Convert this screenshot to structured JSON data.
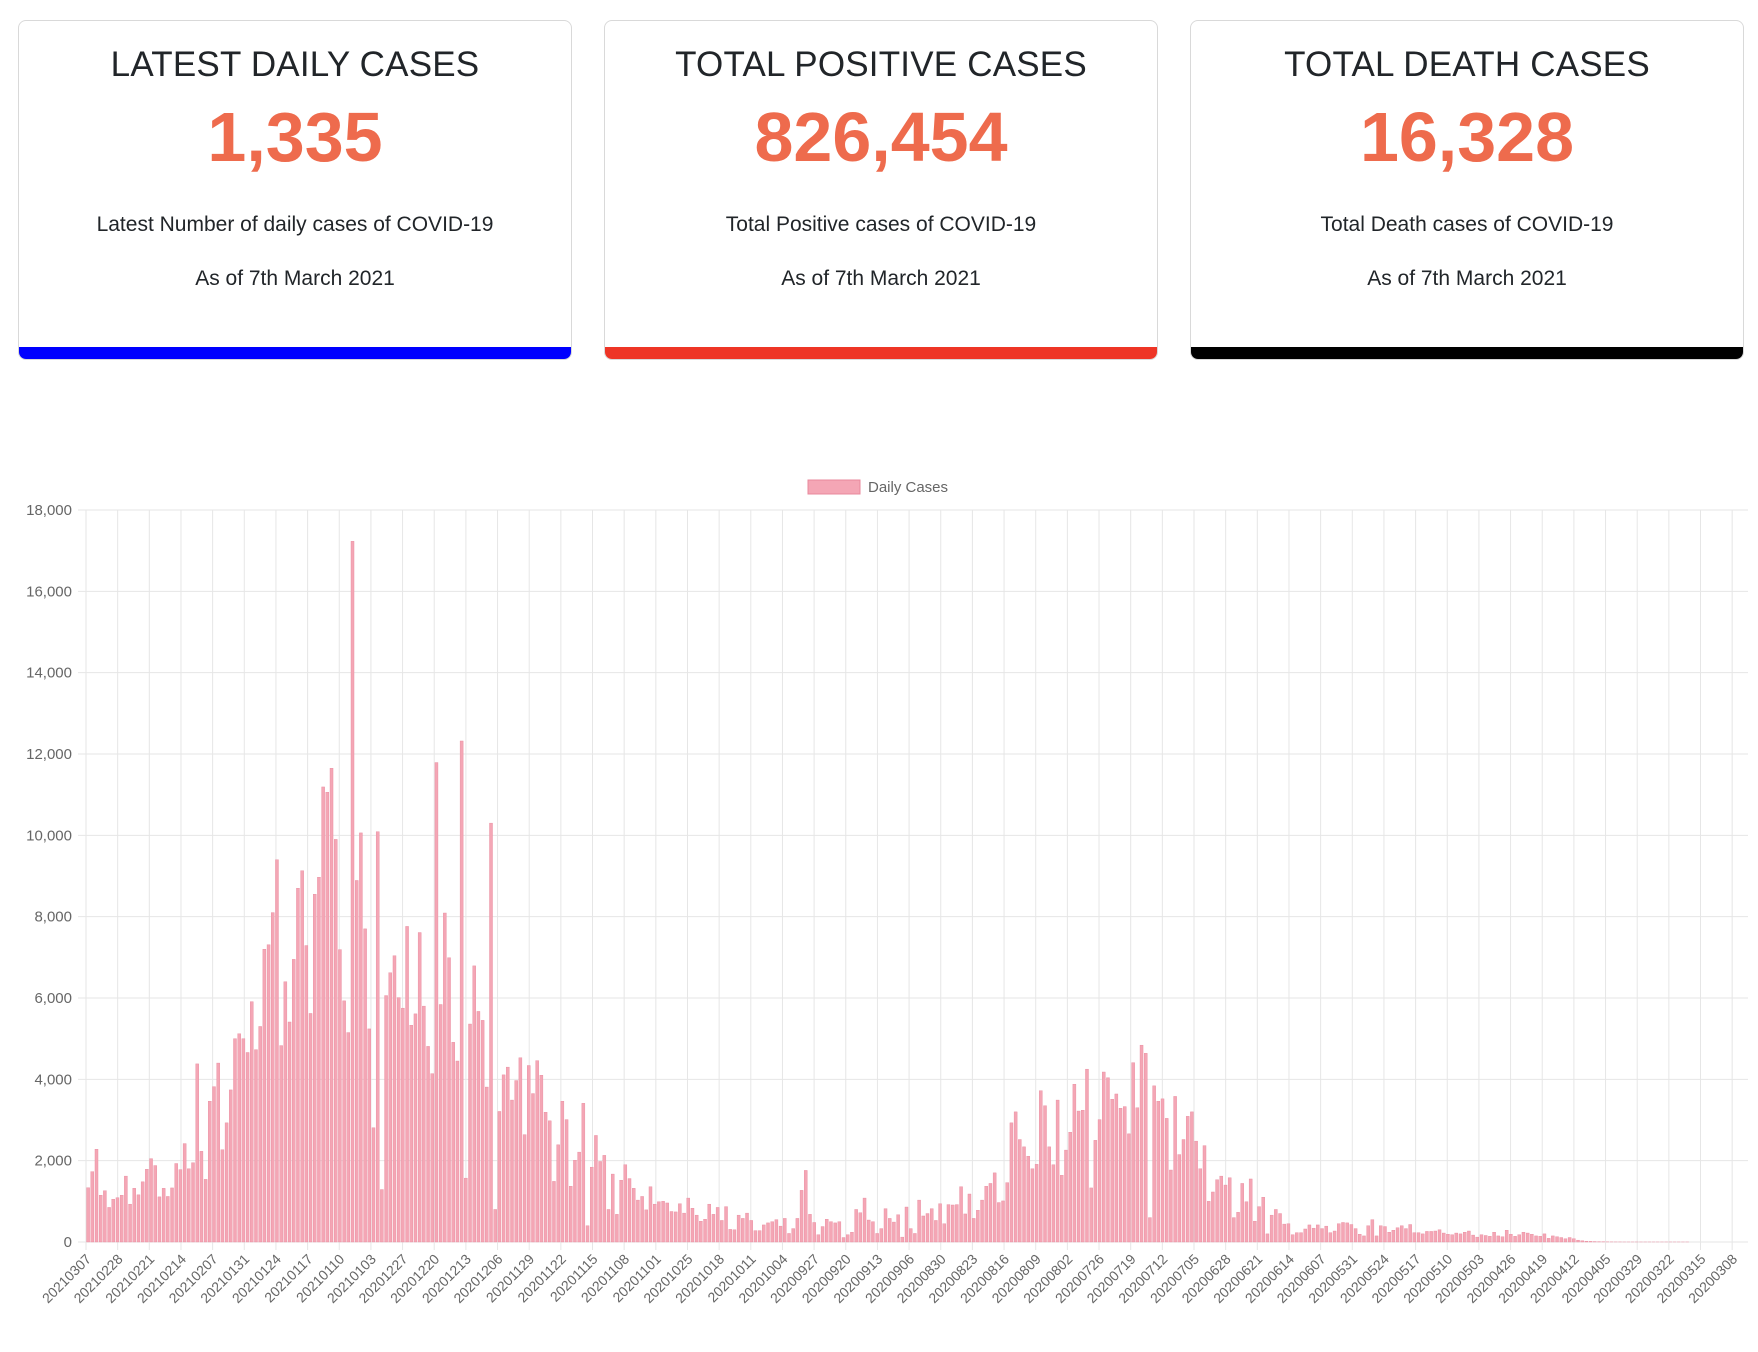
{
  "cards": [
    {
      "title": "LATEST DAILY CASES",
      "value": "1,335",
      "description": "Latest Number of daily cases of COVID-19",
      "as_of": "As of 7th March 2021",
      "accent": "#0000ff"
    },
    {
      "title": "TOTAL POSITIVE CASES",
      "value": "826,454",
      "description": "Total Positive cases of COVID-19",
      "as_of": "As of 7th March 2021",
      "accent": "#ee3526"
    },
    {
      "title": "TOTAL DEATH CASES",
      "value": "16,328",
      "description": "Total Death cases of COVID-19",
      "as_of": "As of 7th March 2021",
      "accent": "#000000"
    }
  ],
  "colors": {
    "value": "#ee6b4d",
    "bar_fill": "#f4a6b5",
    "bar_stroke": "#e8889c",
    "grid": "#e6e6e6",
    "axis_text": "#666666"
  },
  "chart_data": {
    "type": "bar",
    "legend": "Daily Cases",
    "legend_position": "top-center",
    "ylim": [
      0,
      18000
    ],
    "yticks": [
      0,
      2000,
      4000,
      6000,
      8000,
      10000,
      12000,
      14000,
      16000,
      18000
    ],
    "ytick_labels": [
      "0",
      "2,000",
      "4,000",
      "6,000",
      "8,000",
      "10,000",
      "12,000",
      "14,000",
      "16,000",
      "18,000"
    ],
    "xtick_labels": [
      "20210307",
      "20210228",
      "20210221",
      "20210214",
      "20210207",
      "20210131",
      "20210124",
      "20210117",
      "20210110",
      "20210103",
      "20201227",
      "20201220",
      "20201213",
      "20201206",
      "20201129",
      "20201122",
      "20201115",
      "20201108",
      "20201101",
      "20201025",
      "20201018",
      "20201011",
      "20201004",
      "20200927",
      "20200920",
      "20200913",
      "20200906",
      "20200830",
      "20200823",
      "20200816",
      "20200809",
      "20200802",
      "20200726",
      "20200719",
      "20200712",
      "20200705",
      "20200628",
      "20200621",
      "20200614",
      "20200607",
      "20200531",
      "20200524",
      "20200517",
      "20200510",
      "20200503",
      "20200426",
      "20200419",
      "20200412",
      "20200405",
      "20200329",
      "20200322",
      "20200315",
      "20200308"
    ],
    "grid": true,
    "values": [
      1335,
      1730,
      2280,
      1150,
      1260,
      850,
      1050,
      1090,
      1150,
      1620,
      930,
      1320,
      1160,
      1480,
      1790,
      2050,
      1880,
      1110,
      1320,
      1120,
      1330,
      1930,
      1780,
      2420,
      1800,
      1950,
      4380,
      2230,
      1540,
      3460,
      3820,
      4400,
      2270,
      2930,
      3740,
      5000,
      5120,
      5000,
      4660,
      5910,
      4730,
      5300,
      7200,
      7310,
      8100,
      9400,
      4830,
      6400,
      5410,
      6950,
      8700,
      9130,
      7290,
      5620,
      8550,
      8970,
      11190,
      11060,
      11650,
      9900,
      7190,
      5930,
      5150,
      17230,
      8890,
      10060,
      7700,
      5240,
      2810,
      10090,
      1290,
      6060,
      6620,
      7040,
      6010,
      5750,
      7760,
      5330,
      5610,
      7610,
      5800,
      4810,
      4140,
      11790,
      5840,
      8090,
      6990,
      4910,
      4450,
      12320,
      1570,
      5360,
      6790,
      5670,
      5450,
      3810,
      10300,
      800,
      3210,
      4110,
      4300,
      3490,
      3970,
      4530,
      2640,
      4340,
      3650,
      4460,
      4100,
      3190,
      2980,
      1490,
      2390,
      3460,
      3010,
      1370,
      2010,
      2210,
      3410,
      400,
      1840,
      2620,
      1980,
      2130,
      800,
      1670,
      680,
      1520,
      1900,
      1560,
      1320,
      1030,
      1120,
      790,
      1360,
      930,
      990,
      1000,
      960,
      750,
      740,
      940,
      710,
      1080,
      830,
      660,
      510,
      560,
      930,
      680,
      850,
      530,
      870,
      310,
      300,
      660,
      580,
      710,
      530,
      280,
      280,
      420,
      470,
      500,
      550,
      390,
      580,
      210,
      330,
      580,
      1270,
      1760,
      680,
      480,
      180,
      380,
      560,
      500,
      470,
      500,
      110,
      180,
      240,
      800,
      720,
      1080,
      540,
      500,
      210,
      330,
      820,
      580,
      490,
      670,
      120,
      860,
      330,
      210,
      1030,
      640,
      700,
      820,
      530,
      940,
      450,
      920,
      910,
      920,
      1360,
      690,
      1180,
      580,
      780,
      1030,
      1370,
      1440,
      1700,
      970,
      1010,
      1460,
      2930,
      3200,
      2520,
      2340,
      2110,
      1800,
      1910,
      3720,
      3350,
      2340,
      1900,
      3490,
      1640,
      2260,
      2700,
      3880,
      3220,
      3240,
      4250,
      1330,
      2500,
      3010,
      4180,
      4040,
      3510,
      3640,
      3290,
      3330,
      2660,
      4410,
      3300,
      4840,
      4640,
      600,
      3840,
      3460,
      3520,
      3040,
      1770,
      3580,
      2150,
      2520,
      3090,
      3200,
      2480,
      1800,
      2370,
      1000,
      1230,
      1530,
      1620,
      1400,
      1580,
      600,
      730,
      1440,
      990,
      1550,
      510,
      870,
      1100,
      200,
      660,
      800,
      700,
      440,
      450,
      180,
      230,
      230,
      320,
      420,
      340,
      420,
      330,
      390,
      230,
      270,
      450,
      480,
      470,
      430,
      330,
      190,
      150,
      400,
      550,
      150,
      400,
      380,
      240,
      290,
      350,
      400,
      330,
      430,
      230,
      230,
      200,
      260,
      260,
      270,
      300,
      220,
      190,
      180,
      220,
      200,
      240,
      270,
      170,
      120,
      180,
      160,
      140,
      240,
      150,
      130,
      290,
      190,
      140,
      180,
      240,
      220,
      190,
      150,
      140,
      200,
      90,
      150,
      130,
      110,
      80,
      110,
      80,
      45,
      30,
      20,
      15,
      10,
      8,
      5,
      4,
      3,
      2,
      2,
      1,
      1,
      1,
      1,
      1,
      1,
      1,
      1,
      1,
      1,
      1,
      1,
      1,
      1,
      1,
      1,
      0,
      0,
      0,
      0,
      0,
      0,
      0,
      0,
      0,
      0,
      0,
      0,
      0,
      0
    ]
  }
}
